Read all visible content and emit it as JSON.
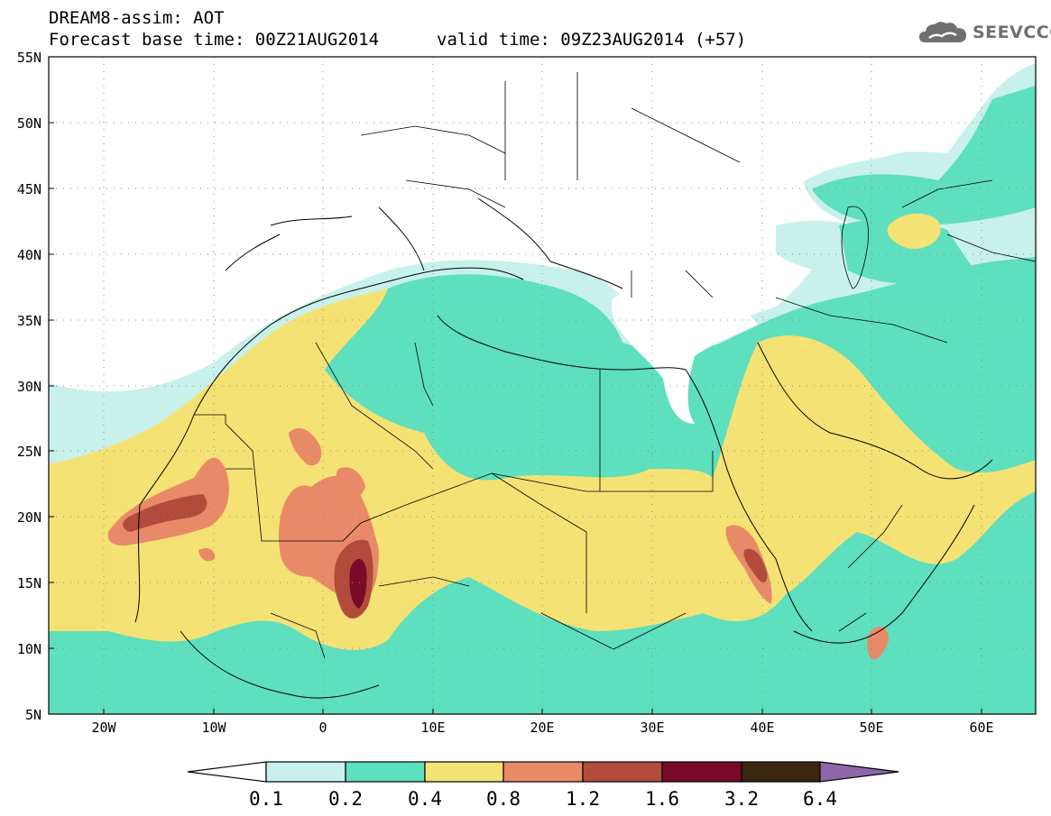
{
  "header": {
    "line1": "DREAM8-assim: AOT",
    "base_time": "Forecast base time: 00Z21AUG2014",
    "valid_time": "valid time: 09Z23AUG2014 (+57)"
  },
  "logo": {
    "text": "SEEVCCC",
    "icon": "cloud-icon"
  },
  "map": {
    "variable": "AOT",
    "lon_range": [
      -25,
      65
    ],
    "lat_range": [
      5,
      55
    ],
    "lat_ticks": [
      "55N",
      "50N",
      "45N",
      "40N",
      "35N",
      "30N",
      "25N",
      "20N",
      "15N",
      "10N",
      "5N"
    ],
    "lon_ticks": [
      "20W",
      "10W",
      "0",
      "10E",
      "20E",
      "30E",
      "40E",
      "50E",
      "60E"
    ],
    "background": "#ffffff",
    "coastline_color": "#000000",
    "grid_style": "dotted"
  },
  "colorbar": {
    "labels": [
      "0.1",
      "0.2",
      "0.4",
      "0.8",
      "1.2",
      "1.6",
      "3.2",
      "6.4"
    ],
    "colors": [
      "#ffffff",
      "#c7f1ea",
      "#5edfbd",
      "#f5e275",
      "#e88a68",
      "#b34b3c",
      "#7a0a2a",
      "#3b2410",
      "#8f67a8"
    ]
  }
}
